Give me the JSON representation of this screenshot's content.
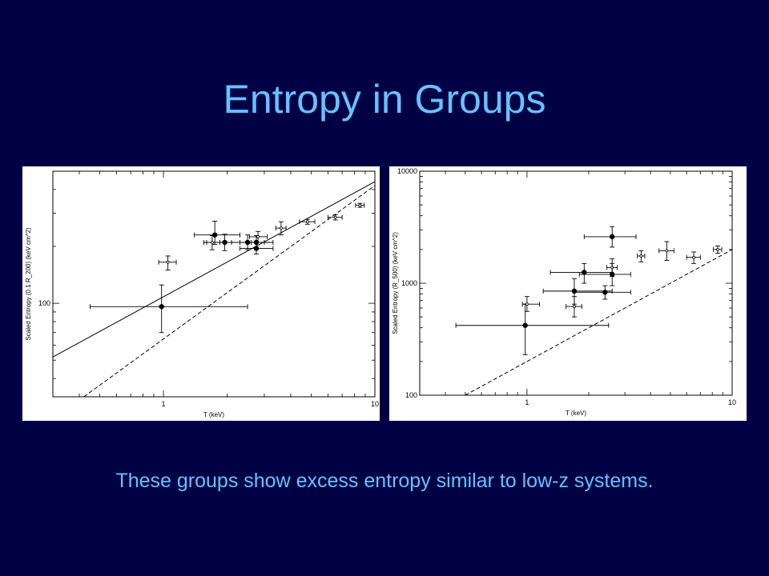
{
  "slide": {
    "title": "Entropy in Groups",
    "caption": "These groups show excess entropy similar to low-z systems.",
    "background": "#000044",
    "text_color": "#66c2ff"
  },
  "chart_data": [
    {
      "type": "scatter",
      "xlabel": "T (keV)",
      "ylabel": "Scaled Entropy (0.1 R_200) (keV cm^2)",
      "xscale": "log",
      "yscale": "log",
      "xlim": [
        0.3,
        10
      ],
      "ylim": [
        32,
        500
      ],
      "xticks": [
        {
          "v": 1,
          "label": "1"
        },
        {
          "v": 10,
          "label": "10"
        }
      ],
      "yticks": [
        {
          "v": 100,
          "label": "100"
        }
      ],
      "points": [
        {
          "x": 0.98,
          "y": 96,
          "xerr": [
            0.45,
            2.5
          ],
          "yerr": [
            70,
            125
          ],
          "marker": "filled"
        },
        {
          "x": 1.75,
          "y": 230,
          "xerr": [
            1.4,
            2.3
          ],
          "yerr": [
            205,
            272
          ],
          "marker": "filled"
        },
        {
          "x": 1.95,
          "y": 210,
          "xerr": [
            1.6,
            2.6
          ],
          "yerr": [
            190,
            232
          ],
          "marker": "filled"
        },
        {
          "x": 2.5,
          "y": 210,
          "xerr": [
            2.1,
            3.0
          ],
          "yerr": [
            192,
            230
          ],
          "marker": "filled"
        },
        {
          "x": 2.75,
          "y": 210,
          "xerr": [
            2.3,
            3.3
          ],
          "yerr": [
            195,
            228
          ],
          "marker": "filled"
        },
        {
          "x": 2.75,
          "y": 195,
          "xerr": [
            2.3,
            3.3
          ],
          "yerr": [
            182,
            210
          ],
          "marker": "filled"
        },
        {
          "x": 1.05,
          "y": 165,
          "xerr": [
            0.95,
            1.15
          ],
          "yerr": [
            150,
            178
          ],
          "marker": "open"
        },
        {
          "x": 1.7,
          "y": 210,
          "xerr": [
            1.55,
            1.85
          ],
          "yerr": [
            192,
            228
          ],
          "marker": "open"
        },
        {
          "x": 2.8,
          "y": 225,
          "xerr": [
            2.55,
            3.1
          ],
          "yerr": [
            210,
            240
          ],
          "marker": "open"
        },
        {
          "x": 3.6,
          "y": 250,
          "xerr": [
            3.4,
            3.8
          ],
          "yerr": [
            230,
            270
          ],
          "marker": "open"
        },
        {
          "x": 4.8,
          "y": 270,
          "xerr": [
            4.4,
            5.2
          ],
          "yerr": [
            262,
            278
          ],
          "marker": "open"
        },
        {
          "x": 6.5,
          "y": 285,
          "xerr": [
            6.0,
            7.0
          ],
          "yerr": [
            276,
            294
          ],
          "marker": "open"
        },
        {
          "x": 8.5,
          "y": 330,
          "xerr": [
            8.1,
            8.9
          ],
          "yerr": [
            322,
            338
          ],
          "marker": "open"
        }
      ],
      "lines": [
        {
          "style": "solid",
          "points": [
            [
              0.3,
              52
            ],
            [
              10,
              440
            ]
          ]
        },
        {
          "style": "dashed",
          "points": [
            [
              0.42,
              32
            ],
            [
              10,
              420
            ]
          ]
        }
      ]
    },
    {
      "type": "scatter",
      "xlabel": "T (keV)",
      "ylabel": "Scaled Entropy (R_500) (keV cm^2)",
      "xscale": "log",
      "yscale": "log",
      "xlim": [
        0.3,
        10
      ],
      "ylim": [
        100,
        10000
      ],
      "xticks": [
        {
          "v": 1,
          "label": "1"
        },
        {
          "v": 10,
          "label": "10"
        }
      ],
      "yticks": [
        {
          "v": 100,
          "label": "100"
        },
        {
          "v": 1000,
          "label": "1000"
        },
        {
          "v": 10000,
          "label": "10000"
        }
      ],
      "points": [
        {
          "x": 0.98,
          "y": 420,
          "xerr": [
            0.45,
            2.5
          ],
          "yerr": [
            230,
            650
          ],
          "marker": "filled"
        },
        {
          "x": 1.7,
          "y": 850,
          "xerr": [
            1.2,
            2.6
          ],
          "yerr": [
            650,
            1100
          ],
          "marker": "filled"
        },
        {
          "x": 1.9,
          "y": 1250,
          "xerr": [
            1.3,
            2.6
          ],
          "yerr": [
            1000,
            1500
          ],
          "marker": "filled"
        },
        {
          "x": 2.4,
          "y": 830,
          "xerr": [
            1.7,
            3.2
          ],
          "yerr": [
            720,
            950
          ],
          "marker": "filled"
        },
        {
          "x": 2.6,
          "y": 1200,
          "xerr": [
            1.8,
            3.2
          ],
          "yerr": [
            950,
            1500
          ],
          "marker": "filled"
        },
        {
          "x": 2.6,
          "y": 2600,
          "xerr": [
            1.9,
            3.4
          ],
          "yerr": [
            2100,
            3200
          ],
          "marker": "filled"
        },
        {
          "x": 1.0,
          "y": 650,
          "xerr": [
            0.95,
            1.15
          ],
          "yerr": [
            560,
            760
          ],
          "marker": "open"
        },
        {
          "x": 1.7,
          "y": 620,
          "xerr": [
            1.55,
            1.85
          ],
          "yerr": [
            500,
            760
          ],
          "marker": "open"
        },
        {
          "x": 2.6,
          "y": 1380,
          "xerr": [
            2.45,
            2.75
          ],
          "yerr": [
            1150,
            1650
          ],
          "marker": "open"
        },
        {
          "x": 3.6,
          "y": 1750,
          "xerr": [
            3.45,
            3.75
          ],
          "yerr": [
            1550,
            1950
          ],
          "marker": "open"
        },
        {
          "x": 4.8,
          "y": 1950,
          "xerr": [
            4.4,
            5.2
          ],
          "yerr": [
            1600,
            2350
          ],
          "marker": "open"
        },
        {
          "x": 6.5,
          "y": 1700,
          "xerr": [
            6.0,
            7.0
          ],
          "yerr": [
            1500,
            1900
          ],
          "marker": "open"
        },
        {
          "x": 8.5,
          "y": 2000,
          "xerr": [
            8.1,
            8.9
          ],
          "yerr": [
            1850,
            2150
          ],
          "marker": "open"
        }
      ],
      "lines": [
        {
          "style": "dashed",
          "points": [
            [
              0.5,
              100
            ],
            [
              10,
              2000
            ]
          ]
        }
      ]
    }
  ]
}
